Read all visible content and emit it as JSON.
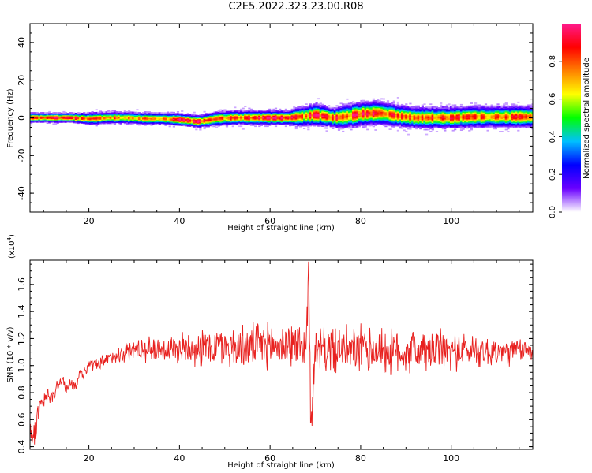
{
  "title": "C2E5.2022.323.23.00.R08",
  "chart_data": [
    {
      "type": "heatmap",
      "name": "spectrogram",
      "xlabel": "Height of straight line (km)",
      "ylabel": "Frequency (Hz)",
      "xlim": [
        7,
        118
      ],
      "ylim": [
        -50,
        50
      ],
      "xticks": [
        20,
        40,
        60,
        80,
        100
      ],
      "yticks": [
        -40,
        -20,
        0,
        20,
        40
      ],
      "colorbar": {
        "label": "Normalized spectral amplitude",
        "range": [
          0.0,
          1.0
        ],
        "ticks": [
          "0.0",
          "0.2",
          "0.4",
          "0.6",
          "0.8"
        ],
        "colormap": [
          "#ffffff",
          "#6a00ff",
          "#0000ff",
          "#00c0ff",
          "#00ff00",
          "#ffff00",
          "#ff8000",
          "#ff0000",
          "#ff1a8c"
        ]
      },
      "band": {
        "x": [
          8,
          12,
          16,
          20,
          24,
          28,
          32,
          36,
          40,
          44,
          48,
          52,
          56,
          60,
          64,
          66,
          70,
          74,
          76,
          80,
          84,
          88,
          92,
          96,
          100,
          104,
          108,
          112,
          116
        ],
        "center_hz": [
          0,
          0,
          0,
          -0.5,
          0,
          0,
          -0.5,
          -0.5,
          -1,
          -2,
          -0.5,
          0,
          0,
          0,
          0,
          0.5,
          1.5,
          0,
          0.5,
          2,
          2.5,
          1,
          0,
          0,
          0,
          0.5,
          0.5,
          0.5,
          0.5
        ],
        "halfwidth_hz": [
          2,
          2,
          2,
          2.5,
          2.5,
          2.5,
          2.5,
          2.5,
          2.5,
          2.5,
          3,
          3,
          3,
          3,
          3,
          4,
          4.5,
          4,
          5,
          5,
          5,
          4.5,
          4.5,
          4.5,
          4.5,
          4.5,
          4.5,
          4.5,
          4.5
        ],
        "peak": [
          0.85,
          0.9,
          0.9,
          0.8,
          0.85,
          0.75,
          0.8,
          0.8,
          0.9,
          0.95,
          0.8,
          0.85,
          0.9,
          0.95,
          0.95,
          0.8,
          0.9,
          0.9,
          0.85,
          0.9,
          0.9,
          0.85,
          0.8,
          0.85,
          0.85,
          0.8,
          0.8,
          0.8,
          0.85
        ]
      }
    },
    {
      "type": "line",
      "name": "snr",
      "xlabel": "Height of straight line (km)",
      "ylabel": "SNR (10 * v/v)",
      "yscale_label": "(x10",
      "yscale_exp": "4",
      "yscale_close": ")",
      "xlim": [
        7,
        118
      ],
      "ylim": [
        0.38,
        1.78
      ],
      "xticks": [
        20,
        40,
        60,
        80,
        100
      ],
      "yticks": [
        0.4,
        0.6,
        0.8,
        1.0,
        1.2,
        1.4,
        1.6
      ],
      "line_color": "#e8201e",
      "series": [
        {
          "x": [
            7,
            8,
            9,
            10,
            11,
            12,
            13,
            14,
            15,
            16,
            17,
            18,
            19,
            20,
            22,
            24,
            26,
            28,
            30,
            32,
            35,
            38,
            40,
            42,
            45,
            48,
            50,
            52,
            55,
            58,
            60,
            62,
            64,
            66,
            68,
            68.5,
            69,
            70,
            72,
            74,
            76,
            78,
            80,
            82,
            84,
            86,
            88,
            90,
            92,
            94,
            96,
            98,
            100,
            102,
            104,
            106,
            108,
            110,
            112,
            114,
            116,
            118
          ],
          "values": [
            0.52,
            0.48,
            0.68,
            0.72,
            0.78,
            0.76,
            0.85,
            0.9,
            0.82,
            0.88,
            0.85,
            0.92,
            0.95,
            1.0,
            1.0,
            1.04,
            1.08,
            1.1,
            1.12,
            1.12,
            1.13,
            1.12,
            1.13,
            1.14,
            1.13,
            1.14,
            1.15,
            1.14,
            1.14,
            1.15,
            1.15,
            1.14,
            1.16,
            1.15,
            1.15,
            1.77,
            0.58,
            1.1,
            1.12,
            1.12,
            1.12,
            1.1,
            1.12,
            1.1,
            1.12,
            1.1,
            1.1,
            1.1,
            1.12,
            1.1,
            1.1,
            1.12,
            1.1,
            1.12,
            1.1,
            1.12,
            1.1,
            1.1,
            1.1,
            1.1,
            1.12,
            1.1
          ],
          "noise_amplitude": [
            0.12,
            0.15,
            0.12,
            0.1,
            0.08,
            0.08,
            0.07,
            0.06,
            0.05,
            0.05,
            0.05,
            0.06,
            0.06,
            0.06,
            0.06,
            0.07,
            0.08,
            0.09,
            0.1,
            0.11,
            0.12,
            0.13,
            0.15,
            0.16,
            0.17,
            0.18,
            0.18,
            0.19,
            0.19,
            0.2,
            0.2,
            0.2,
            0.2,
            0.2,
            0.2,
            0.2,
            0.2,
            0.2,
            0.21,
            0.21,
            0.21,
            0.21,
            0.22,
            0.22,
            0.21,
            0.21,
            0.2,
            0.2,
            0.2,
            0.2,
            0.2,
            0.18,
            0.18,
            0.16,
            0.16,
            0.15,
            0.15,
            0.14,
            0.12,
            0.12,
            0.1,
            0.1
          ]
        }
      ]
    }
  ]
}
